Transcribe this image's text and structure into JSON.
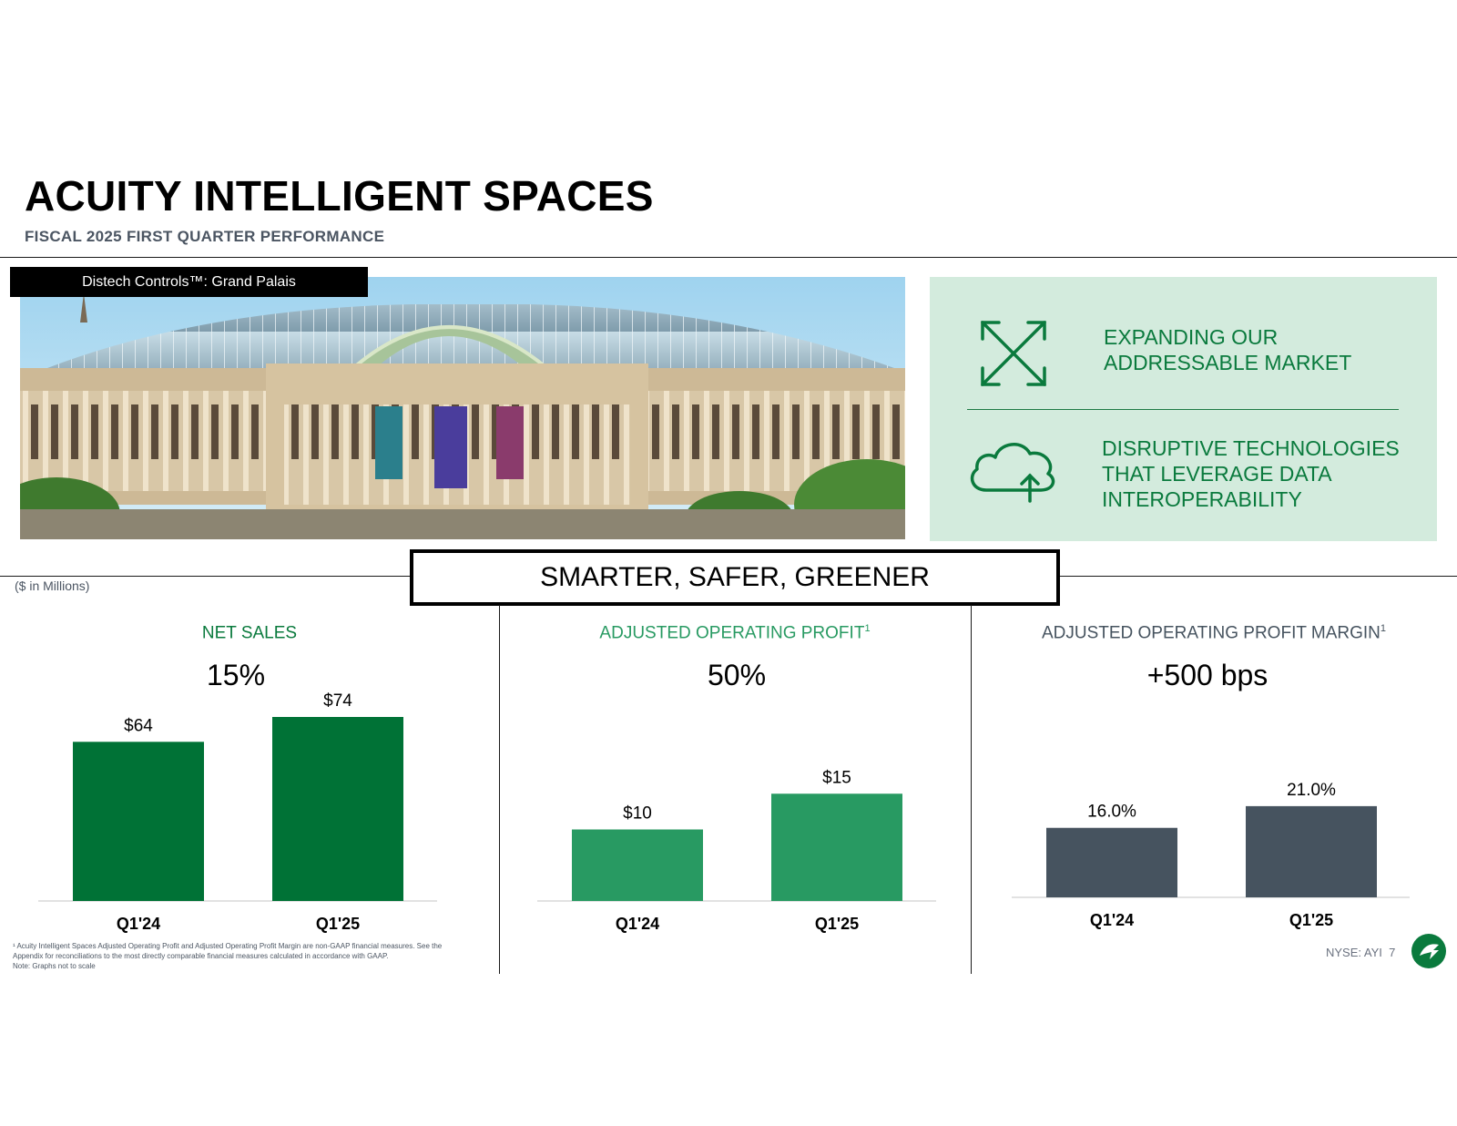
{
  "header": {
    "title": "ACUITY INTELLIGENT SPACES",
    "subtitle": "FISCAL 2025 FIRST QUARTER PERFORMANCE"
  },
  "photo": {
    "label": "Distech Controls™: Grand Palais"
  },
  "panel": {
    "item1": {
      "icon": "expand-arrows-icon",
      "line1": "EXPANDING OUR",
      "line2": "ADDRESSABLE MARKET"
    },
    "item2": {
      "icon": "cloud-upload-icon",
      "line1": "DISRUPTIVE TECHNOLOGIES",
      "line2": "THAT LEVERAGE DATA",
      "line3": "INTEROPERABILITY"
    }
  },
  "banner": "SMARTER, SAFER, GREENER",
  "units": "($ in Millions)",
  "colors": {
    "net_sales": "#007236",
    "adj_op_profit": "#289a62",
    "margin": "#46535f",
    "panel_bg": "#d3ebdd"
  },
  "chart_data": [
    {
      "type": "bar",
      "title": "NET SALES",
      "title_sup": "",
      "growth": "15%",
      "categories": [
        "Q1'24",
        "Q1'25"
      ],
      "values": [
        64,
        74
      ],
      "labels": [
        "$64",
        "$74"
      ],
      "ylim": [
        0,
        74
      ]
    },
    {
      "type": "bar",
      "title": "ADJUSTED OPERATING PROFIT",
      "title_sup": "1",
      "growth": "50%",
      "categories": [
        "Q1'24",
        "Q1'25"
      ],
      "values": [
        10,
        15
      ],
      "labels": [
        "$10",
        "$15"
      ],
      "ylim": [
        0,
        20
      ]
    },
    {
      "type": "bar",
      "title": "ADJUSTED OPERATING PROFIT MARGIN",
      "title_sup": "1",
      "growth": "+500 bps",
      "categories": [
        "Q1'24",
        "Q1'25"
      ],
      "values": [
        16.0,
        21.0
      ],
      "labels": [
        "16.0%",
        "21.0%"
      ],
      "ylim": [
        0,
        30
      ]
    }
  ],
  "footnote": {
    "line1": "¹ Acuity Intelligent Spaces Adjusted Operating Profit and Adjusted Operating Profit Margin are non-GAAP financial measures. See the Appendix for reconciliations to the most directly comparable financial measures calculated in accordance with GAAP.",
    "line2": "Note: Graphs not to scale"
  },
  "footer": {
    "ticker": "NYSE: AYI",
    "page": "7",
    "logo": "acuity-logo"
  }
}
